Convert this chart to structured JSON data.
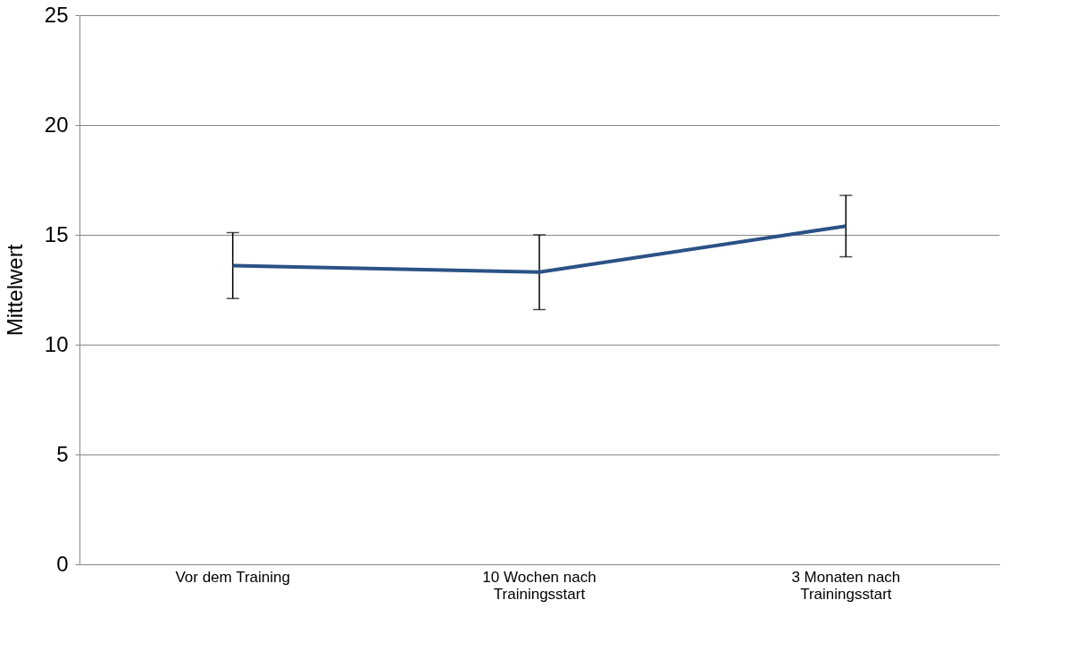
{
  "chart_data": {
    "type": "line",
    "ylabel": "Mittelwert",
    "categories": [
      "Vor dem Training",
      "10 Wochen nach Trainingsstart",
      "3 Monaten nach Trainingsstart"
    ],
    "series": [
      {
        "color": "#2a5285",
        "values": [
          13.6,
          13.3,
          15.4
        ],
        "errors": [
          [
            12.1,
            15.1
          ],
          [
            11.6,
            15.0
          ],
          [
            14.0,
            16.8
          ]
        ]
      }
    ],
    "ylim": [
      0,
      25
    ],
    "yticks": [
      0,
      5,
      10,
      15,
      20,
      25
    ],
    "grid": "y",
    "marker": "none",
    "line_style": "solid"
  }
}
